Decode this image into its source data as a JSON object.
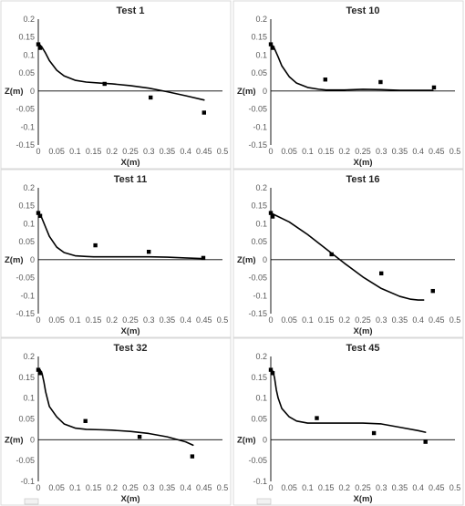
{
  "chart_data": [
    {
      "type": "line",
      "title": "Test 1",
      "xlabel": "X(m)",
      "ylabel": "Z(m)",
      "xlim": [
        0,
        0.5
      ],
      "ylim": [
        -0.15,
        0.2
      ],
      "xticks": [
        "0",
        "0.05",
        "0.1",
        "0.15",
        "0.2",
        "0.25",
        "0.3",
        "0.35",
        "0.4",
        "0.45",
        "0.5"
      ],
      "yticks": [
        "0.2",
        "0.15",
        "0.1",
        "0.05",
        "0",
        "-0.05",
        "-0.1",
        "-0.15"
      ],
      "series": [
        {
          "kind": "line",
          "x": [
            0,
            0.005,
            0.01,
            0.02,
            0.03,
            0.05,
            0.07,
            0.1,
            0.13,
            0.17,
            0.2,
            0.25,
            0.3,
            0.35,
            0.4,
            0.45
          ],
          "y": [
            0.13,
            0.128,
            0.122,
            0.105,
            0.085,
            0.058,
            0.042,
            0.03,
            0.025,
            0.022,
            0.02,
            0.015,
            0.008,
            -0.002,
            -0.013,
            -0.025
          ]
        },
        {
          "kind": "points",
          "x": [
            0,
            0.005,
            0.18,
            0.305,
            0.45
          ],
          "y": [
            0.13,
            0.12,
            0.02,
            -0.018,
            -0.06
          ]
        }
      ]
    },
    {
      "type": "line",
      "title": "Test 10",
      "xlabel": "X(m)",
      "ylabel": "Z(m)",
      "xlim": [
        0,
        0.5
      ],
      "ylim": [
        -0.15,
        0.2
      ],
      "xticks": [
        "0",
        "0.05",
        "0.1",
        "0.15",
        "0.2",
        "0.25",
        "0.3",
        "0.35",
        "0.4",
        "0.45",
        "0.5"
      ],
      "yticks": [
        "0.2",
        "0.15",
        "0.1",
        "0.05",
        "0",
        "-0.05",
        "-0.1",
        "-0.15"
      ],
      "series": [
        {
          "kind": "line",
          "x": [
            0,
            0.005,
            0.01,
            0.02,
            0.03,
            0.05,
            0.07,
            0.1,
            0.13,
            0.15,
            0.2,
            0.25,
            0.3,
            0.35,
            0.4,
            0.44
          ],
          "y": [
            0.13,
            0.126,
            0.118,
            0.095,
            0.07,
            0.04,
            0.022,
            0.01,
            0.005,
            0.003,
            0.003,
            0.005,
            0.004,
            0.002,
            0.002,
            0.002
          ]
        },
        {
          "kind": "points",
          "x": [
            0,
            0.005,
            0.148,
            0.298,
            0.443
          ],
          "y": [
            0.13,
            0.12,
            0.032,
            0.025,
            0.01
          ]
        }
      ]
    },
    {
      "type": "line",
      "title": "Test 11",
      "xlabel": "X(m)",
      "ylabel": "Z(m)",
      "xlim": [
        0,
        0.5
      ],
      "ylim": [
        -0.15,
        0.2
      ],
      "xticks": [
        "0",
        "0.05",
        "0.1",
        "0.15",
        "0.2",
        "0.25",
        "0.3",
        "0.35",
        "0.4",
        "0.45",
        "0.5"
      ],
      "yticks": [
        "0.2",
        "0.15",
        "0.1",
        "0.05",
        "0",
        "-0.05",
        "-0.1",
        "-0.15"
      ],
      "series": [
        {
          "kind": "line",
          "x": [
            0,
            0.005,
            0.01,
            0.02,
            0.03,
            0.05,
            0.07,
            0.1,
            0.13,
            0.15,
            0.2,
            0.25,
            0.3,
            0.35,
            0.4,
            0.45
          ],
          "y": [
            0.13,
            0.125,
            0.115,
            0.09,
            0.065,
            0.035,
            0.02,
            0.011,
            0.009,
            0.008,
            0.008,
            0.008,
            0.008,
            0.007,
            0.005,
            0.003
          ]
        },
        {
          "kind": "points",
          "x": [
            0,
            0.005,
            0.155,
            0.3,
            0.448
          ],
          "y": [
            0.13,
            0.122,
            0.04,
            0.022,
            0.005
          ]
        }
      ]
    },
    {
      "type": "line",
      "title": "Test 16",
      "xlabel": "X(m)",
      "ylabel": "Z(m)",
      "xlim": [
        0,
        0.5
      ],
      "ylim": [
        -0.15,
        0.2
      ],
      "xticks": [
        "0",
        "0.05",
        "0.1",
        "0.15",
        "0.2",
        "0.25",
        "0.3",
        "0.35",
        "0.4",
        "0.45",
        "0.5"
      ],
      "yticks": [
        "0.2",
        "0.15",
        "0.1",
        "0.05",
        "0",
        "-0.05",
        "-0.1",
        "-0.15"
      ],
      "series": [
        {
          "kind": "line",
          "x": [
            0,
            0.05,
            0.1,
            0.15,
            0.2,
            0.25,
            0.3,
            0.35,
            0.38,
            0.4,
            0.415
          ],
          "y": [
            0.13,
            0.105,
            0.07,
            0.03,
            -0.01,
            -0.048,
            -0.08,
            -0.102,
            -0.11,
            -0.112,
            -0.112
          ]
        },
        {
          "kind": "points",
          "x": [
            0,
            0.005,
            0.165,
            0.3,
            0.44
          ],
          "y": [
            0.13,
            0.12,
            0.015,
            -0.038,
            -0.087
          ]
        }
      ]
    },
    {
      "type": "line",
      "title": "Test 32",
      "xlabel": "X(m)",
      "ylabel": "Z(m)",
      "xlim": [
        0,
        0.5
      ],
      "ylim": [
        -0.1,
        0.2
      ],
      "xticks": [
        "0",
        "0.05",
        "0.1",
        "0.15",
        "0.2",
        "0.25",
        "0.3",
        "0.35",
        "0.4",
        "0.45",
        "0.5"
      ],
      "yticks": [
        "0.2",
        "0.15",
        "0.1",
        "0.05",
        "0",
        "-0.05",
        "-0.1"
      ],
      "series": [
        {
          "kind": "line",
          "x": [
            0,
            0.005,
            0.01,
            0.015,
            0.02,
            0.03,
            0.05,
            0.07,
            0.1,
            0.13,
            0.17,
            0.2,
            0.25,
            0.3,
            0.35,
            0.4,
            0.42
          ],
          "y": [
            0.17,
            0.168,
            0.16,
            0.14,
            0.115,
            0.08,
            0.055,
            0.038,
            0.028,
            0.025,
            0.024,
            0.023,
            0.02,
            0.015,
            0.007,
            -0.005,
            -0.013
          ]
        },
        {
          "kind": "points",
          "x": [
            0,
            0.005,
            0.128,
            0.275,
            0.418
          ],
          "y": [
            0.168,
            0.16,
            0.045,
            0.007,
            -0.04
          ]
        }
      ]
    },
    {
      "type": "line",
      "title": "Test 45",
      "xlabel": "X(m)",
      "ylabel": "Z(m)",
      "xlim": [
        0,
        0.5
      ],
      "ylim": [
        -0.1,
        0.2
      ],
      "xticks": [
        "0",
        "0.05",
        "0.1",
        "0.15",
        "0.2",
        "0.25",
        "0.3",
        "0.35",
        "0.4",
        "0.45",
        "0.5"
      ],
      "yticks": [
        "0.2",
        "0.15",
        "0.1",
        "0.05",
        "0",
        "-0.05",
        "-0.1"
      ],
      "series": [
        {
          "kind": "line",
          "x": [
            0,
            0.005,
            0.01,
            0.015,
            0.02,
            0.03,
            0.05,
            0.07,
            0.1,
            0.13,
            0.15,
            0.2,
            0.25,
            0.3,
            0.35,
            0.4,
            0.42
          ],
          "y": [
            0.17,
            0.165,
            0.15,
            0.12,
            0.1,
            0.075,
            0.055,
            0.045,
            0.04,
            0.04,
            0.04,
            0.04,
            0.04,
            0.038,
            0.03,
            0.022,
            0.018
          ]
        },
        {
          "kind": "points",
          "x": [
            0,
            0.005,
            0.125,
            0.28,
            0.42
          ],
          "y": [
            0.168,
            0.16,
            0.052,
            0.016,
            -0.005
          ]
        }
      ]
    }
  ]
}
